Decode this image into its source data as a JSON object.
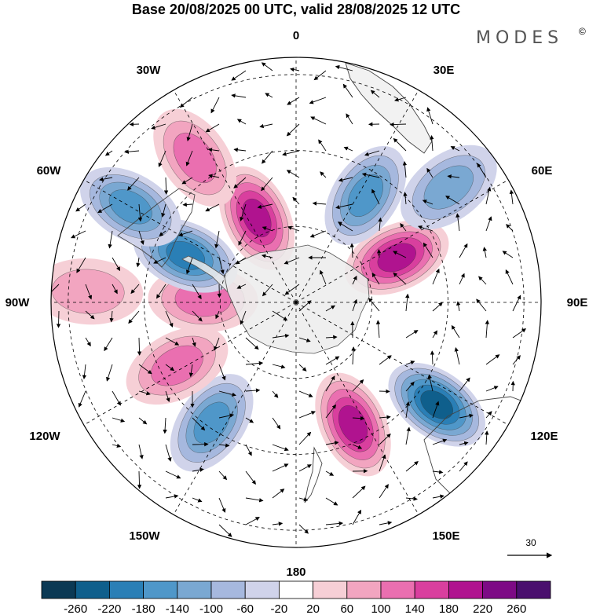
{
  "title": "Base 20/08/2025 00 UTC, valid 28/08/2025 12 UTC",
  "brand": "MODES",
  "brand_mark": "©",
  "lon_labels": {
    "n0": "0",
    "e30": "30E",
    "e60": "60E",
    "e90": "90E",
    "e120": "120E",
    "e150": "150E",
    "s180": "180",
    "w150": "150W",
    "w120": "120W",
    "w90": "90W",
    "w60": "60W",
    "w30": "30W"
  },
  "vector_reference": "30",
  "colorbar": {
    "ticks": [
      "-260",
      "-220",
      "-180",
      "-140",
      "-100",
      "-60",
      "-20",
      "20",
      "60",
      "100",
      "140",
      "180",
      "220",
      "260"
    ],
    "colors": [
      "#0b3954",
      "#0f5f8c",
      "#2a7fb6",
      "#4f97c9",
      "#7aa8d2",
      "#a6b8de",
      "#d0d3ea",
      "#ffffff",
      "#f6cfd6",
      "#f2a5c0",
      "#ea6fb0",
      "#d93f9e",
      "#b0138f",
      "#7d0a85",
      "#4a0f6e"
    ]
  },
  "anomaly_centers": [
    {
      "name": "low-west-atlantic",
      "value": -180,
      "lon": -35,
      "dist": 0.6
    },
    {
      "name": "high-south-america",
      "value": 140,
      "lon": -62,
      "dist": 0.55
    },
    {
      "name": "high-east-pacific",
      "value": 100,
      "lon": -93,
      "dist": 0.85
    },
    {
      "name": "high-bellingshausen",
      "value": 140,
      "lon": -92,
      "dist": 0.38
    },
    {
      "name": "low-amundsen",
      "value": -220,
      "lon": -113,
      "dist": 0.49
    },
    {
      "name": "low-south-pacific",
      "value": -180,
      "lon": -120,
      "dist": 0.78
    },
    {
      "name": "high-ross-sea",
      "value": 220,
      "lon": -155,
      "dist": 0.38
    },
    {
      "name": "high-new-zealand",
      "value": 140,
      "lon": -145,
      "dist": 0.72
    },
    {
      "name": "high-south-atlantic-east",
      "value": 220,
      "lon": 25,
      "dist": 0.55
    },
    {
      "name": "low-indian-ocean",
      "value": -260,
      "lon": 54,
      "dist": 0.71
    },
    {
      "name": "high-kerguelen",
      "value": 220,
      "lon": 114,
      "dist": 0.45
    },
    {
      "name": "low-australia",
      "value": -180,
      "lon": 147,
      "dist": 0.52
    },
    {
      "name": "low-tasman",
      "value": -140,
      "lon": 127,
      "dist": 0.78
    }
  ]
}
